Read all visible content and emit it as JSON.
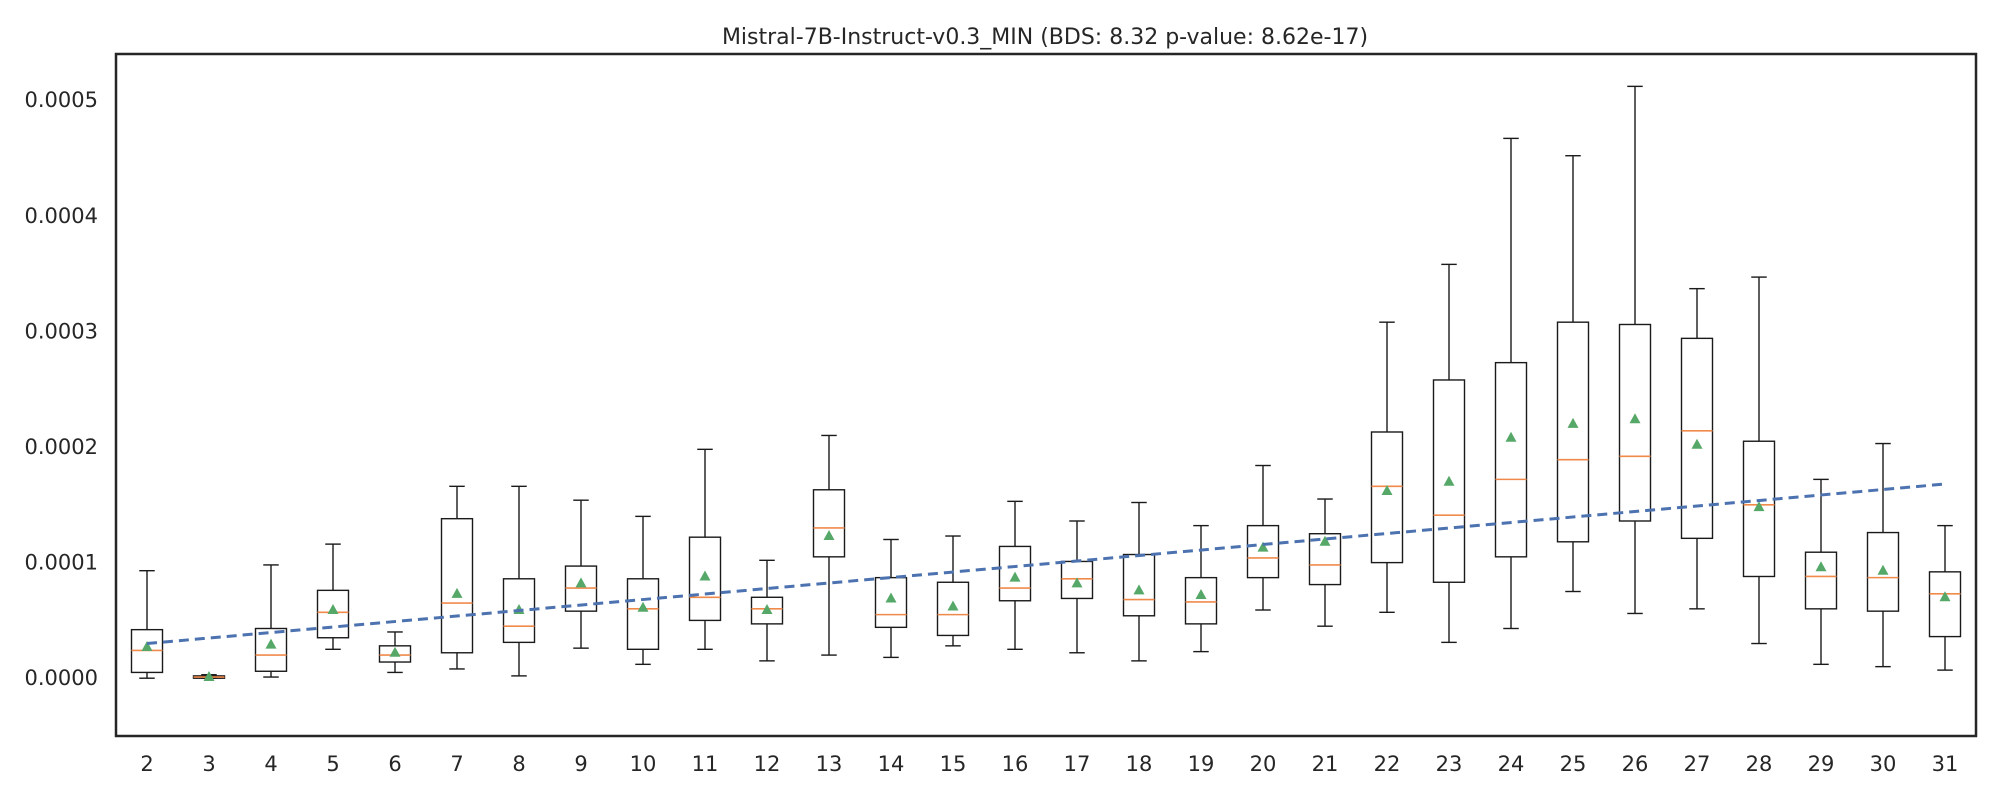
{
  "chart_data": {
    "type": "box",
    "title": "Mistral-7B-Instruct-v0.3_MIN (BDS: 8.32 p-value: 8.62e-17)",
    "xlabel": "",
    "ylabel": "",
    "ylim": [
      -5e-05,
      0.00054
    ],
    "yticks": [
      0,
      0.0001,
      0.0002,
      0.0003,
      0.0004,
      0.0005
    ],
    "ytick_labels": [
      "0.0000",
      "0.0001",
      "0.0002",
      "0.0003",
      "0.0004",
      "0.0005"
    ],
    "grid": false,
    "categories": [
      "2",
      "3",
      "4",
      "5",
      "6",
      "7",
      "8",
      "9",
      "10",
      "11",
      "12",
      "13",
      "14",
      "15",
      "16",
      "17",
      "18",
      "19",
      "20",
      "21",
      "22",
      "23",
      "24",
      "25",
      "26",
      "27",
      "28",
      "29",
      "30",
      "31"
    ],
    "boxes": [
      {
        "whislo": 0.0,
        "q1": 5e-06,
        "med": 2.4e-05,
        "q3": 4.2e-05,
        "whishi": 9.3e-05,
        "mean": 2.7e-05
      },
      {
        "whislo": 0.0,
        "q1": 0.0,
        "med": 1e-06,
        "q3": 2e-06,
        "whishi": 3e-06,
        "mean": 1e-06
      },
      {
        "whislo": 1e-06,
        "q1": 6e-06,
        "med": 2e-05,
        "q3": 4.3e-05,
        "whishi": 9.8e-05,
        "mean": 2.9e-05
      },
      {
        "whislo": 2.5e-05,
        "q1": 3.5e-05,
        "med": 5.7e-05,
        "q3": 7.6e-05,
        "whishi": 0.000116,
        "mean": 5.9e-05
      },
      {
        "whislo": 5e-06,
        "q1": 1.4e-05,
        "med": 2e-05,
        "q3": 2.8e-05,
        "whishi": 4e-05,
        "mean": 2.2e-05
      },
      {
        "whislo": 8e-06,
        "q1": 2.2e-05,
        "med": 6.5e-05,
        "q3": 0.000138,
        "whishi": 0.000166,
        "mean": 7.3e-05
      },
      {
        "whislo": 2e-06,
        "q1": 3.1e-05,
        "med": 4.5e-05,
        "q3": 8.6e-05,
        "whishi": 0.000166,
        "mean": 5.9e-05
      },
      {
        "whislo": 2.6e-05,
        "q1": 5.8e-05,
        "med": 7.8e-05,
        "q3": 9.7e-05,
        "whishi": 0.000154,
        "mean": 8.2e-05
      },
      {
        "whislo": 1.2e-05,
        "q1": 2.5e-05,
        "med": 6e-05,
        "q3": 8.6e-05,
        "whishi": 0.00014,
        "mean": 6.1e-05
      },
      {
        "whislo": 2.5e-05,
        "q1": 5e-05,
        "med": 7e-05,
        "q3": 0.000122,
        "whishi": 0.000198,
        "mean": 8.8e-05
      },
      {
        "whislo": 1.5e-05,
        "q1": 4.7e-05,
        "med": 6e-05,
        "q3": 7e-05,
        "whishi": 0.000102,
        "mean": 5.9e-05
      },
      {
        "whislo": 2e-05,
        "q1": 0.000105,
        "med": 0.00013,
        "q3": 0.000163,
        "whishi": 0.00021,
        "mean": 0.000123
      },
      {
        "whislo": 1.8e-05,
        "q1": 4.4e-05,
        "med": 5.5e-05,
        "q3": 8.7e-05,
        "whishi": 0.00012,
        "mean": 6.9e-05
      },
      {
        "whislo": 2.8e-05,
        "q1": 3.7e-05,
        "med": 5.5e-05,
        "q3": 8.3e-05,
        "whishi": 0.000123,
        "mean": 6.2e-05
      },
      {
        "whislo": 2.5e-05,
        "q1": 6.7e-05,
        "med": 7.8e-05,
        "q3": 0.000114,
        "whishi": 0.000153,
        "mean": 8.7e-05
      },
      {
        "whislo": 2.2e-05,
        "q1": 6.9e-05,
        "med": 8.6e-05,
        "q3": 0.000101,
        "whishi": 0.000136,
        "mean": 8.2e-05
      },
      {
        "whislo": 1.5e-05,
        "q1": 5.4e-05,
        "med": 6.8e-05,
        "q3": 0.000107,
        "whishi": 0.000152,
        "mean": 7.6e-05
      },
      {
        "whislo": 2.3e-05,
        "q1": 4.7e-05,
        "med": 6.6e-05,
        "q3": 8.7e-05,
        "whishi": 0.000132,
        "mean": 7.2e-05
      },
      {
        "whislo": 5.9e-05,
        "q1": 8.7e-05,
        "med": 0.000104,
        "q3": 0.000132,
        "whishi": 0.000184,
        "mean": 0.000113
      },
      {
        "whislo": 4.5e-05,
        "q1": 8.1e-05,
        "med": 9.8e-05,
        "q3": 0.000125,
        "whishi": 0.000155,
        "mean": 0.000118
      },
      {
        "whislo": 5.7e-05,
        "q1": 0.0001,
        "med": 0.000166,
        "q3": 0.000213,
        "whishi": 0.000308,
        "mean": 0.000162
      },
      {
        "whislo": 3.1e-05,
        "q1": 8.3e-05,
        "med": 0.000141,
        "q3": 0.000258,
        "whishi": 0.000358,
        "mean": 0.00017
      },
      {
        "whislo": 4.3e-05,
        "q1": 0.000105,
        "med": 0.000172,
        "q3": 0.000273,
        "whishi": 0.000467,
        "mean": 0.000208
      },
      {
        "whislo": 7.5e-05,
        "q1": 0.000118,
        "med": 0.000189,
        "q3": 0.000308,
        "whishi": 0.000452,
        "mean": 0.00022
      },
      {
        "whislo": 5.6e-05,
        "q1": 0.000136,
        "med": 0.000192,
        "q3": 0.000306,
        "whishi": 0.000512,
        "mean": 0.000224
      },
      {
        "whislo": 6e-05,
        "q1": 0.000121,
        "med": 0.000214,
        "q3": 0.000294,
        "whishi": 0.000337,
        "mean": 0.000202
      },
      {
        "whislo": 3e-05,
        "q1": 8.8e-05,
        "med": 0.00015,
        "q3": 0.000205,
        "whishi": 0.000347,
        "mean": 0.000148
      },
      {
        "whislo": 1.2e-05,
        "q1": 6e-05,
        "med": 8.8e-05,
        "q3": 0.000109,
        "whishi": 0.000172,
        "mean": 9.6e-05
      },
      {
        "whislo": 1e-05,
        "q1": 5.8e-05,
        "med": 8.7e-05,
        "q3": 0.000126,
        "whishi": 0.000203,
        "mean": 9.3e-05
      },
      {
        "whislo": 7e-06,
        "q1": 3.6e-05,
        "med": 7.3e-05,
        "q3": 9.2e-05,
        "whishi": 0.000132,
        "mean": 7e-05
      }
    ],
    "trend_line": {
      "style": "dashed",
      "color": "#4c72b0",
      "x": [
        "2",
        "31"
      ],
      "y": [
        3e-05,
        0.000168
      ]
    },
    "colors": {
      "median": "#f08a4b",
      "mean_marker": "#55a868",
      "box": "#1a1a1a",
      "trend": "#4c72b0"
    }
  }
}
